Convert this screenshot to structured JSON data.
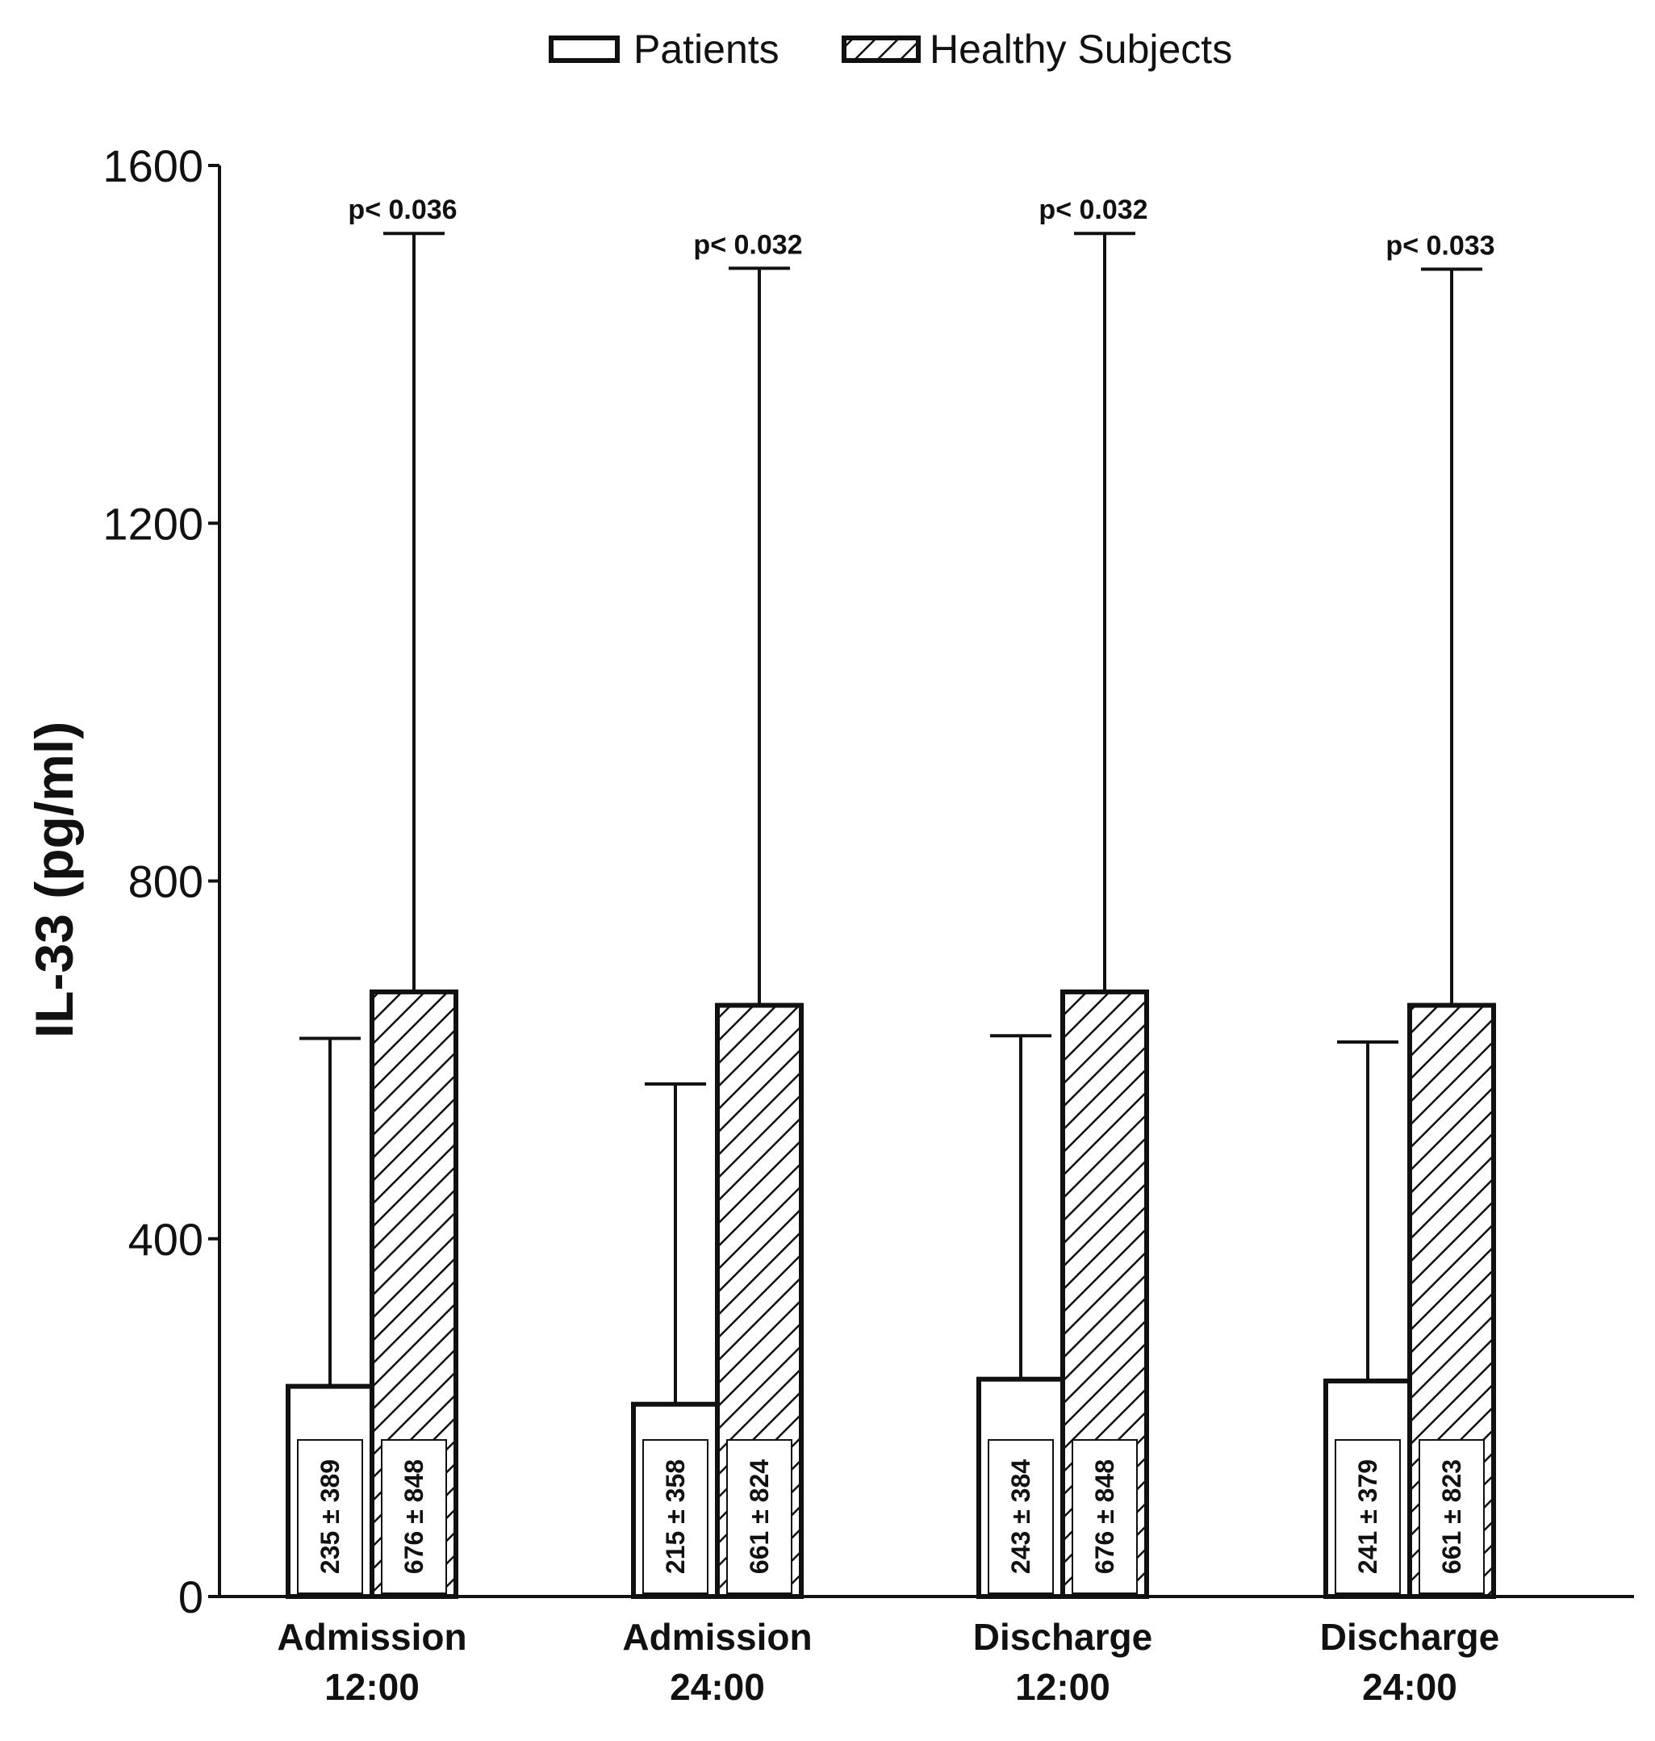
{
  "chart_data": {
    "type": "bar",
    "title": "",
    "xlabel": "",
    "ylabel": "IL-33 (pg/ml)",
    "ylim": [
      0,
      1600
    ],
    "yticks": [
      0,
      400,
      800,
      1200,
      1600
    ],
    "grid": false,
    "legend_position": "top-center",
    "categories": [
      {
        "line1": "Admission",
        "line2": "12:00"
      },
      {
        "line1": "Admission",
        "line2": "24:00"
      },
      {
        "line1": "Discharge",
        "line2": "12:00"
      },
      {
        "line1": "Discharge",
        "line2": "24:00"
      }
    ],
    "series": [
      {
        "name": "Patients",
        "fill": "white",
        "values": [
          235,
          215,
          243,
          241
        ],
        "errors": [
          389,
          358,
          384,
          379
        ],
        "labels": [
          "235 ± 389",
          "215 ± 358",
          "243 ± 384",
          "241 ± 379"
        ]
      },
      {
        "name": "Healthy Subjects",
        "fill": "hatched",
        "values": [
          676,
          661,
          676,
          661
        ],
        "errors": [
          848,
          824,
          848,
          823
        ],
        "labels": [
          "676 ± 848",
          "661 ± 824",
          "676 ± 848",
          "661 ± 823"
        ]
      }
    ],
    "annotations": [
      "p< 0.036",
      "p< 0.032",
      "p< 0.032",
      "p< 0.033"
    ]
  }
}
